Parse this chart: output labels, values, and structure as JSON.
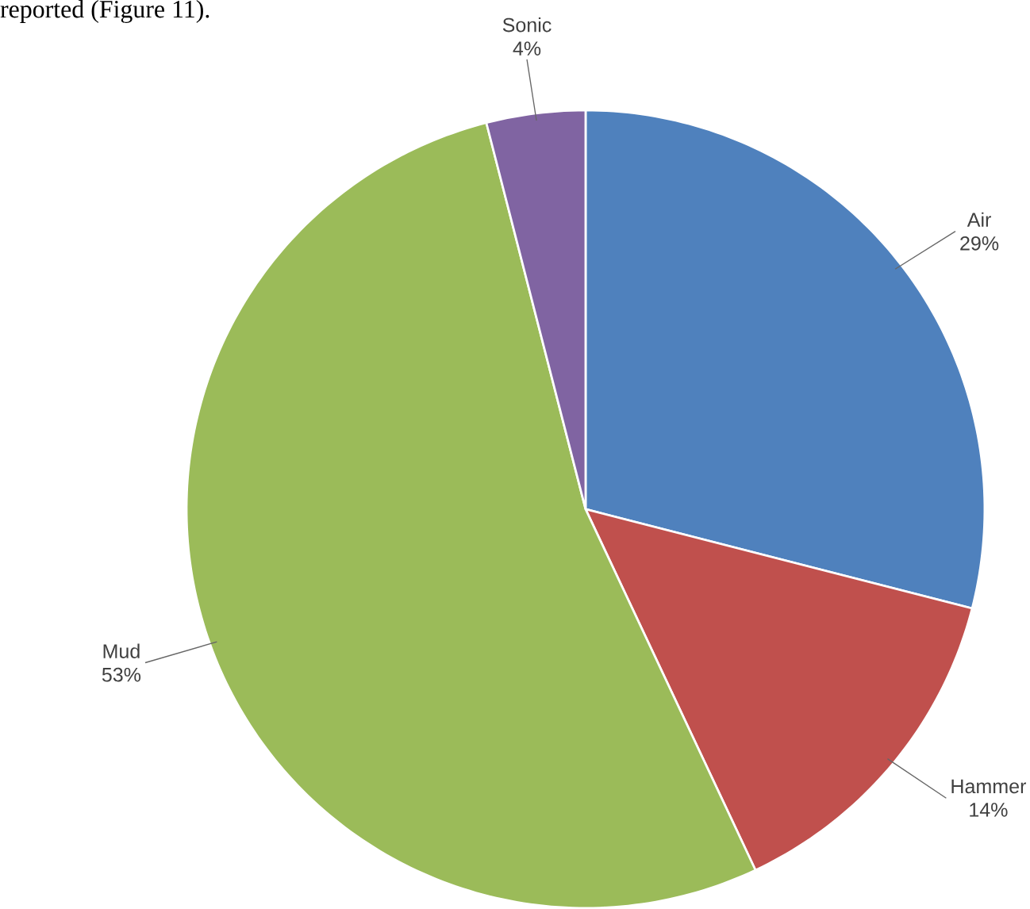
{
  "chart_data": {
    "type": "pie",
    "categories": [
      "Air",
      "Hammer",
      "Mud",
      "Sonic"
    ],
    "values": [
      29,
      14,
      53,
      4
    ],
    "colors": [
      "#4f81bd",
      "#c0504d",
      "#9bbb59",
      "#8064a2"
    ],
    "value_labels": [
      "29%",
      "14%",
      "53%",
      "4%"
    ],
    "annotations": [
      "reported (Figure 11)."
    ]
  }
}
